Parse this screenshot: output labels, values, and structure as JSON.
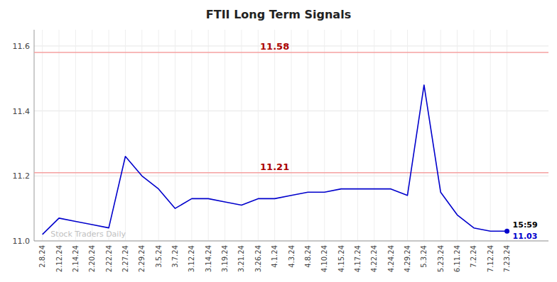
{
  "chart_data": {
    "type": "line",
    "title": "FTII Long Term Signals",
    "categories": [
      "2.8.24",
      "2.12.24",
      "2.14.24",
      "2.20.24",
      "2.22.24",
      "2.27.24",
      "2.29.24",
      "3.5.24",
      "3.7.24",
      "3.12.24",
      "3.14.24",
      "3.19.24",
      "3.21.24",
      "3.26.24",
      "4.1.24",
      "4.3.24",
      "4.8.24",
      "4.10.24",
      "4.15.24",
      "4.17.24",
      "4.22.24",
      "4.24.24",
      "4.29.24",
      "5.3.24",
      "5.23.24",
      "6.11.24",
      "7.2.24",
      "7.12.24",
      "7.23.24"
    ],
    "values": [
      11.02,
      11.07,
      11.06,
      11.05,
      11.04,
      11.26,
      11.2,
      11.16,
      11.1,
      11.13,
      11.13,
      11.12,
      11.11,
      11.13,
      11.13,
      11.14,
      11.15,
      11.15,
      11.16,
      11.16,
      11.16,
      11.16,
      11.14,
      11.48,
      11.15,
      11.08,
      11.04,
      11.03,
      11.03
    ],
    "color": "#0000cc",
    "ylim": [
      11.0,
      11.65
    ],
    "yticks": [
      {
        "value": 11.0,
        "label": "11.0"
      },
      11.2,
      11.4,
      11.6
    ],
    "grid": true,
    "reference_lines": [
      {
        "value": 11.58,
        "label": "11.58",
        "color": "#f5a0a0",
        "label_color": "#aa0000"
      },
      {
        "value": 11.21,
        "label": "11.21",
        "color": "#f5a0a0",
        "label_color": "#aa0000"
      }
    ],
    "annotations": [
      {
        "text": "Stock Traders Daily",
        "color": "#c0c0c0"
      },
      {
        "text": "15:59",
        "color": "#000000"
      },
      {
        "text": "11.03",
        "color": "#0000cc"
      }
    ]
  }
}
